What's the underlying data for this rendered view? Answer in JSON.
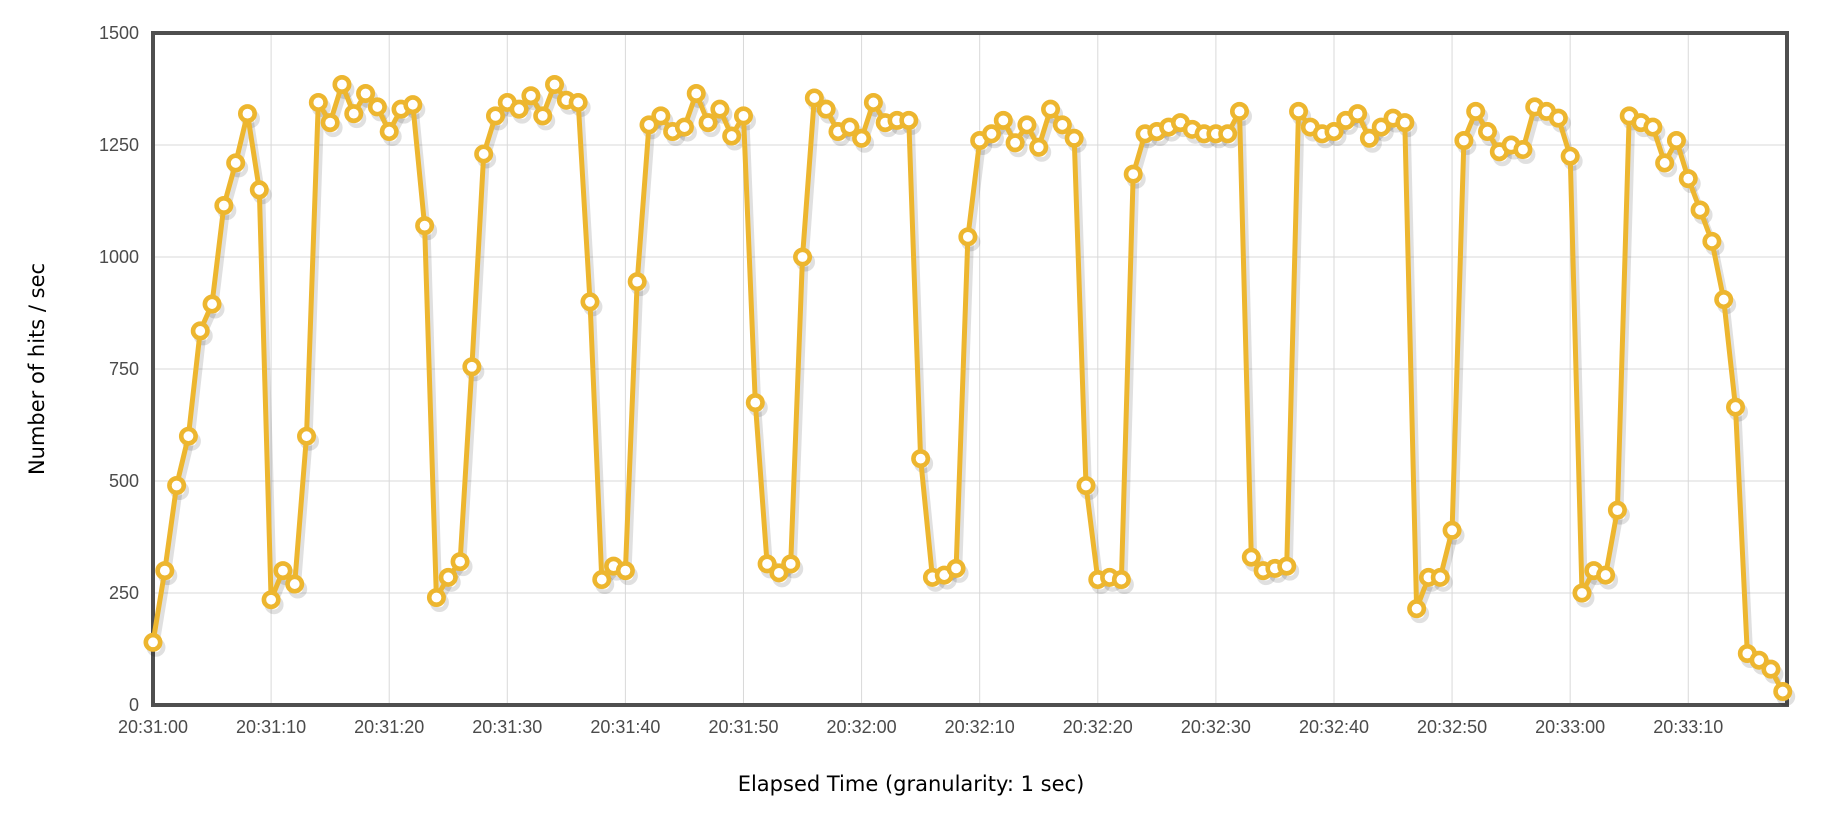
{
  "page": {
    "background": "#FFFFFF"
  },
  "chart_data": {
    "type": "line",
    "title": "",
    "xlabel": "Elapsed Time (granularity: 1 sec)",
    "ylabel": "Number of hits / sec",
    "legend": "none",
    "grid": true,
    "ylim": [
      0,
      1500
    ],
    "y_ticks": [
      0,
      250,
      500,
      750,
      1000,
      1250,
      1500
    ],
    "x_start_time": "20:31:00",
    "x_interval_sec": 1,
    "x_tick_interval_sec": 10,
    "x_ticks": [
      "20:31:00",
      "20:31:10",
      "20:31:20",
      "20:31:30",
      "20:31:40",
      "20:31:50",
      "20:32:00",
      "20:32:10",
      "20:32:20",
      "20:32:30",
      "20:32:40",
      "20:32:50",
      "20:33:00",
      "20:33:10"
    ],
    "series": [
      {
        "name": "Number of hits / sec",
        "marker": "circle",
        "values": [
          140,
          300,
          490,
          600,
          835,
          895,
          1115,
          1210,
          1320,
          1150,
          235,
          300,
          270,
          600,
          1345,
          1300,
          1385,
          1320,
          1365,
          1335,
          1280,
          1330,
          1340,
          1070,
          240,
          285,
          320,
          755,
          1230,
          1315,
          1345,
          1330,
          1360,
          1315,
          1385,
          1350,
          1345,
          900,
          280,
          310,
          300,
          945,
          1295,
          1315,
          1280,
          1290,
          1365,
          1300,
          1330,
          1270,
          1315,
          675,
          315,
          295,
          315,
          1000,
          1355,
          1330,
          1280,
          1290,
          1265,
          1345,
          1300,
          1305,
          1305,
          550,
          285,
          290,
          305,
          1045,
          1260,
          1275,
          1305,
          1255,
          1295,
          1245,
          1330,
          1295,
          1265,
          490,
          280,
          285,
          280,
          1185,
          1275,
          1280,
          1290,
          1300,
          1285,
          1275,
          1275,
          1275,
          1325,
          330,
          300,
          305,
          310,
          1325,
          1290,
          1275,
          1280,
          1305,
          1320,
          1265,
          1290,
          1310,
          1300,
          215,
          285,
          285,
          390,
          1260,
          1325,
          1280,
          1235,
          1250,
          1240,
          1335,
          1325,
          1310,
          1225,
          250,
          300,
          290,
          435,
          1315,
          1300,
          1290,
          1210,
          1260,
          1175,
          1105,
          1035,
          905,
          665,
          115,
          100,
          80,
          30
        ]
      }
    ],
    "colors": {
      "line": "#EDB62F",
      "marker_fill": "#FFFFFF",
      "shadow": "rgba(0,0,0,0.12)",
      "grid_line": "#D9D9D9",
      "plot_border": "#4F4F4F",
      "tick_text": "#4B4B4B",
      "title_text": "#000000",
      "background": "#FFFFFF"
    }
  }
}
